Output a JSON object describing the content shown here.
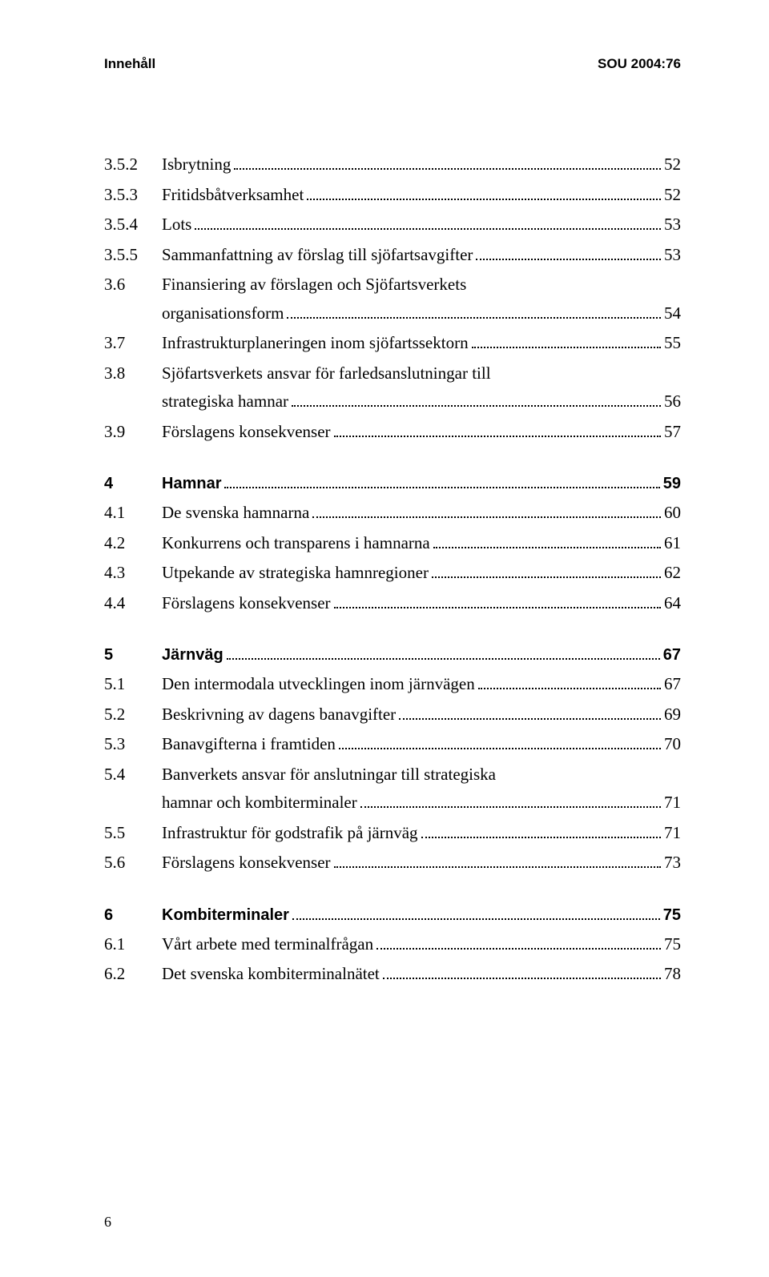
{
  "header": {
    "left": "Innehåll",
    "right": "SOU 2004:76"
  },
  "entries": [
    {
      "type": "item",
      "num": "3.5.2",
      "text": "Isbrytning",
      "page": "52"
    },
    {
      "type": "item",
      "num": "3.5.3",
      "text": "Fritidsbåtverksamhet",
      "page": "52"
    },
    {
      "type": "item",
      "num": "3.5.4",
      "text": "Lots",
      "page": "53"
    },
    {
      "type": "item",
      "num": "3.5.5",
      "text": "Sammanfattning av förslag till sjöfartsavgifter",
      "page": "53"
    },
    {
      "type": "multi",
      "num": "3.6",
      "line1": "Finansiering av förslagen och Sjöfartsverkets",
      "line2": "organisationsform",
      "page": "54"
    },
    {
      "type": "item",
      "num": "3.7",
      "text": "Infrastrukturplaneringen inom sjöfartssektorn",
      "page": "55"
    },
    {
      "type": "multi",
      "num": "3.8",
      "line1": "Sjöfartsverkets ansvar för farledsanslutningar till",
      "line2": "strategiska hamnar",
      "page": "56"
    },
    {
      "type": "item",
      "num": "3.9",
      "text": "Förslagens konsekvenser",
      "page": "57"
    },
    {
      "type": "gap"
    },
    {
      "type": "section",
      "num": "4",
      "text": "Hamnar",
      "page": "59"
    },
    {
      "type": "item",
      "num": "4.1",
      "text": "De svenska hamnarna",
      "page": "60"
    },
    {
      "type": "item",
      "num": "4.2",
      "text": "Konkurrens och transparens i hamnarna",
      "page": "61"
    },
    {
      "type": "item",
      "num": "4.3",
      "text": "Utpekande av strategiska hamnregioner",
      "page": "62"
    },
    {
      "type": "item",
      "num": "4.4",
      "text": "Förslagens konsekvenser",
      "page": "64"
    },
    {
      "type": "gap"
    },
    {
      "type": "section",
      "num": "5",
      "text": "Järnväg",
      "page": "67"
    },
    {
      "type": "item",
      "num": "5.1",
      "text": "Den intermodala utvecklingen inom järnvägen",
      "page": "67"
    },
    {
      "type": "item",
      "num": "5.2",
      "text": "Beskrivning av dagens banavgifter",
      "page": "69"
    },
    {
      "type": "item",
      "num": "5.3",
      "text": "Banavgifterna i framtiden",
      "page": "70"
    },
    {
      "type": "multi",
      "num": "5.4",
      "line1": "Banverkets ansvar för anslutningar till strategiska",
      "line2": "hamnar och kombiterminaler",
      "page": "71"
    },
    {
      "type": "item",
      "num": "5.5",
      "text": "Infrastruktur för godstrafik på järnväg",
      "page": "71"
    },
    {
      "type": "item",
      "num": "5.6",
      "text": "Förslagens konsekvenser",
      "page": "73"
    },
    {
      "type": "gap"
    },
    {
      "type": "section",
      "num": "6",
      "text": "Kombiterminaler",
      "page": "75"
    },
    {
      "type": "item",
      "num": "6.1",
      "text": "Vårt arbete med terminalfrågan",
      "page": "75"
    },
    {
      "type": "item",
      "num": "6.2",
      "text": "Det svenska kombiterminalnätet",
      "page": "78"
    }
  ],
  "footerPage": "6",
  "style": {
    "bg": "#ffffff",
    "text": "#000000",
    "bodyFontSize": 21,
    "headerFontSize": 17
  }
}
